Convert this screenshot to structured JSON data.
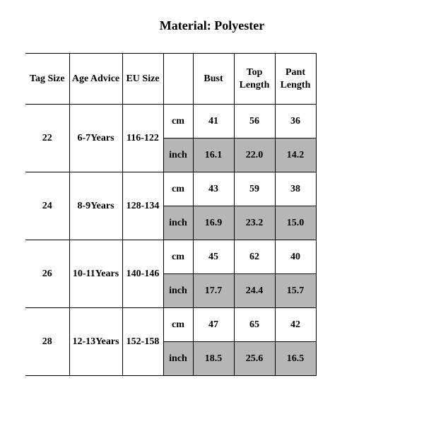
{
  "title": "Material: Polyester",
  "columns": {
    "tag": "Tag Size",
    "age": "Age Advice",
    "eu": "EU Size",
    "unit": "",
    "bust": "Bust",
    "top": "Top Length",
    "pant": "Pant Length"
  },
  "units": {
    "cm": "cm",
    "inch": "inch"
  },
  "rows": [
    {
      "tag": "22",
      "age": "6-7Years",
      "eu": "116-122",
      "cm": {
        "bust": "41",
        "top": "56",
        "pant": "36"
      },
      "inch": {
        "bust": "16.1",
        "top": "22.0",
        "pant": "14.2"
      }
    },
    {
      "tag": "24",
      "age": "8-9Years",
      "eu": "128-134",
      "cm": {
        "bust": "43",
        "top": "59",
        "pant": "38"
      },
      "inch": {
        "bust": "16.9",
        "top": "23.2",
        "pant": "15.0"
      }
    },
    {
      "tag": "26",
      "age": "10-11Years",
      "eu": "140-146",
      "cm": {
        "bust": "45",
        "top": "62",
        "pant": "40"
      },
      "inch": {
        "bust": "17.7",
        "top": "24.4",
        "pant": "15.7"
      }
    },
    {
      "tag": "28",
      "age": "12-13Years",
      "eu": "152-158",
      "cm": {
        "bust": "47",
        "top": "65",
        "pant": "42"
      },
      "inch": {
        "bust": "18.5",
        "top": "25.6",
        "pant": "16.5"
      }
    }
  ],
  "style": {
    "highlight_bg": "#b6b6b6",
    "background": "#ffffff",
    "border_color": "#000000",
    "font_family": "Times New Roman, serif",
    "title_fontsize": 18,
    "cell_fontsize": 14
  }
}
